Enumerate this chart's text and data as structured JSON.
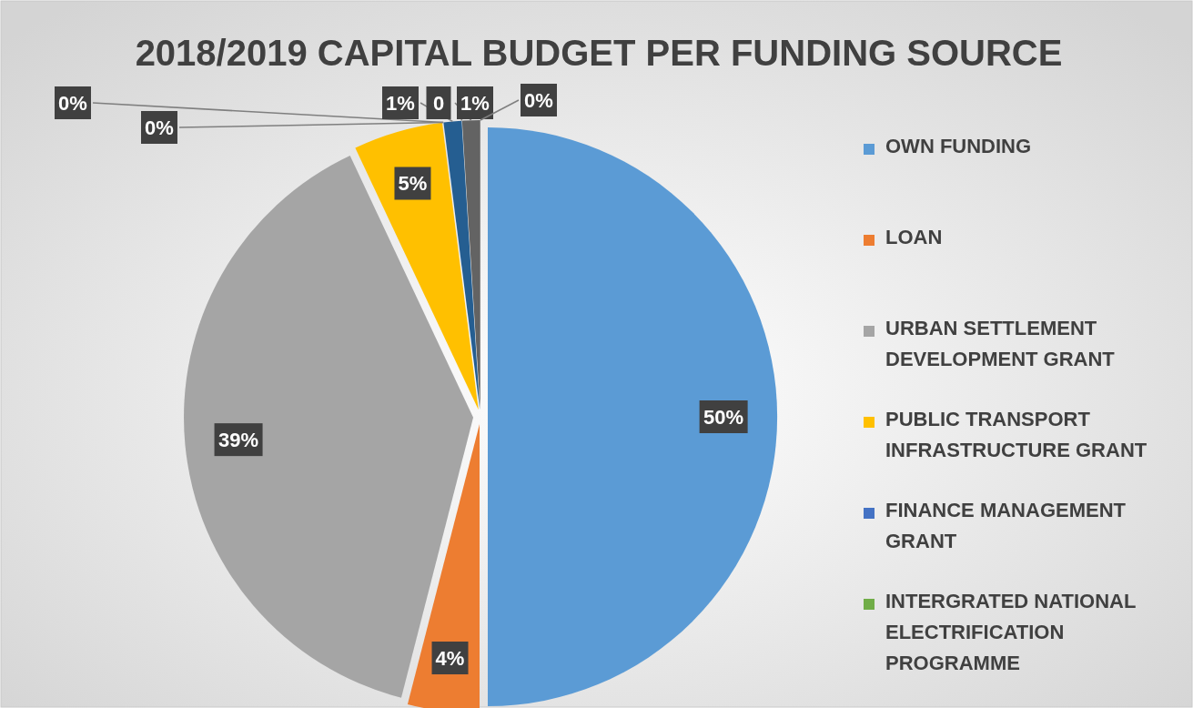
{
  "chart_data": {
    "type": "pie",
    "title": "2018/2019 CAPITAL BUDGET PER FUNDING SOURCE",
    "categories": [
      "OWN FUNDING",
      "LOAN",
      "URBAN SETTLEMENT DEVELOPMENT GRANT",
      "PUBLIC TRANSPORT INFRASTRUCTURE GRANT",
      "FINANCE MANAGEMENT GRANT",
      "INTERGRATED NATIONAL ELECTRIFICATION PROGRAMME",
      null,
      null,
      null,
      null
    ],
    "values": [
      50,
      4,
      39,
      5,
      0,
      0,
      1,
      0,
      1,
      0
    ],
    "colors": [
      "#5b9bd5",
      "#ed7d31",
      "#a5a5a5",
      "#ffc000",
      "#4472c4",
      "#70ad47",
      "#255e91",
      "#9e480e",
      "#636363",
      "#997300"
    ],
    "value_labels": [
      "50%",
      "4%",
      "39%",
      "5%",
      "0%",
      "0%",
      "1%",
      "0",
      "1%",
      "0%"
    ],
    "legend": "right"
  }
}
